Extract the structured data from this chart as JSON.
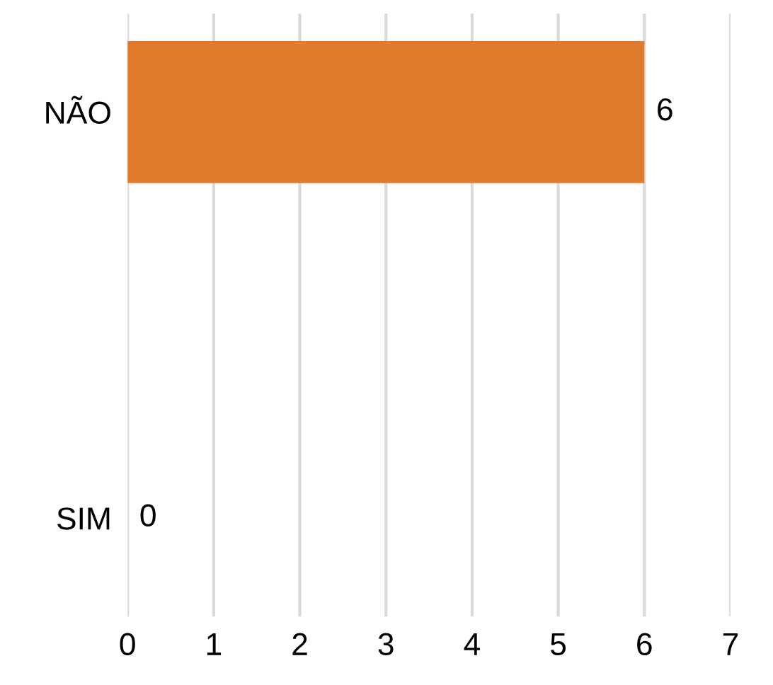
{
  "chart_data": {
    "type": "bar",
    "orientation": "horizontal",
    "categories": [
      "NÃO",
      "SIM"
    ],
    "values": [
      6,
      0
    ],
    "color": "#e07a2c",
    "xlim": [
      0,
      7
    ],
    "xticks": [
      0,
      1,
      2,
      3,
      4,
      5,
      6,
      7
    ],
    "grid": "x",
    "data_labels": true
  }
}
